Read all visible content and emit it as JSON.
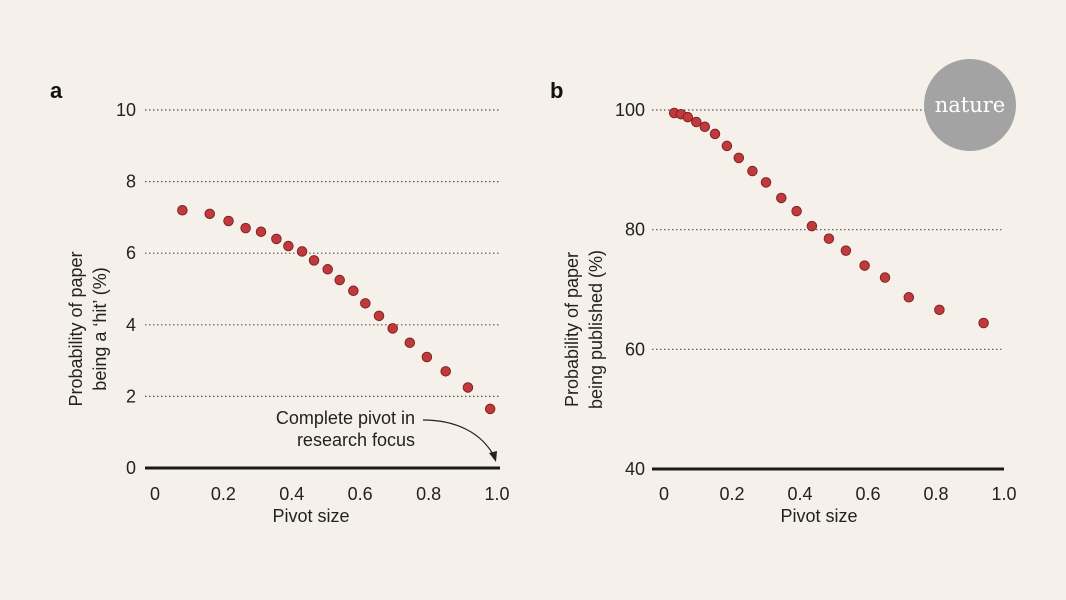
{
  "brand": {
    "logo_text": "nature",
    "logo_color": "#a3a3a3"
  },
  "colors": {
    "marker": "#c0393b",
    "marker_edge": "#7a1f22",
    "axis": "#1a1a1a",
    "grid": "#555555",
    "background": "#f5f1ea"
  },
  "chart_data": [
    {
      "type": "scatter",
      "panel_label": "a",
      "title": "",
      "xlabel": "Pivot size",
      "ylabel_lines": [
        "Probability of paper",
        "being a ‘hit’ (%)"
      ],
      "xlim": [
        0,
        1.0
      ],
      "ylim": [
        0,
        10
      ],
      "xticks": [
        0,
        0.2,
        0.4,
        0.6,
        0.8,
        1.0
      ],
      "xtick_labels": [
        "0",
        "0.2",
        "0.4",
        "0.6",
        "0.8",
        "1.0"
      ],
      "yticks": [
        0,
        2,
        4,
        6,
        8,
        10
      ],
      "ytick_labels": [
        "0",
        "2",
        "4",
        "6",
        "8",
        "10"
      ],
      "grid": "horizontal dotted",
      "x": [
        0.08,
        0.16,
        0.215,
        0.265,
        0.31,
        0.355,
        0.39,
        0.43,
        0.465,
        0.505,
        0.54,
        0.58,
        0.615,
        0.655,
        0.695,
        0.745,
        0.795,
        0.85,
        0.915,
        0.98
      ],
      "y": [
        7.2,
        7.1,
        6.9,
        6.7,
        6.6,
        6.4,
        6.2,
        6.05,
        5.8,
        5.55,
        5.25,
        4.95,
        4.6,
        4.25,
        3.9,
        3.5,
        3.1,
        2.7,
        2.25,
        1.65
      ],
      "annotation": {
        "lines": [
          "Complete pivot in",
          "research focus"
        ],
        "target": [
          1.0,
          0
        ]
      }
    },
    {
      "type": "scatter",
      "panel_label": "b",
      "title": "",
      "xlabel": "Pivot size",
      "ylabel_lines": [
        "Probability of paper",
        "being published (%)"
      ],
      "xlim": [
        0,
        1.0
      ],
      "ylim": [
        40,
        100
      ],
      "xticks": [
        0,
        0.2,
        0.4,
        0.6,
        0.8,
        1.0
      ],
      "xtick_labels": [
        "0",
        "0.2",
        "0.4",
        "0.6",
        "0.8",
        "1.0"
      ],
      "yticks": [
        40,
        60,
        80,
        100
      ],
      "ytick_labels": [
        "40",
        "60",
        "80",
        "100"
      ],
      "grid": "horizontal dotted",
      "x": [
        0.03,
        0.05,
        0.07,
        0.095,
        0.12,
        0.15,
        0.185,
        0.22,
        0.26,
        0.3,
        0.345,
        0.39,
        0.435,
        0.485,
        0.535,
        0.59,
        0.65,
        0.72,
        0.81,
        0.94
      ],
      "y": [
        99.5,
        99.3,
        98.8,
        98,
        97.2,
        96,
        94,
        92,
        89.8,
        87.9,
        85.3,
        83.1,
        80.6,
        78.5,
        76.5,
        74,
        72,
        68.7,
        66.6,
        64.4
      ]
    }
  ]
}
